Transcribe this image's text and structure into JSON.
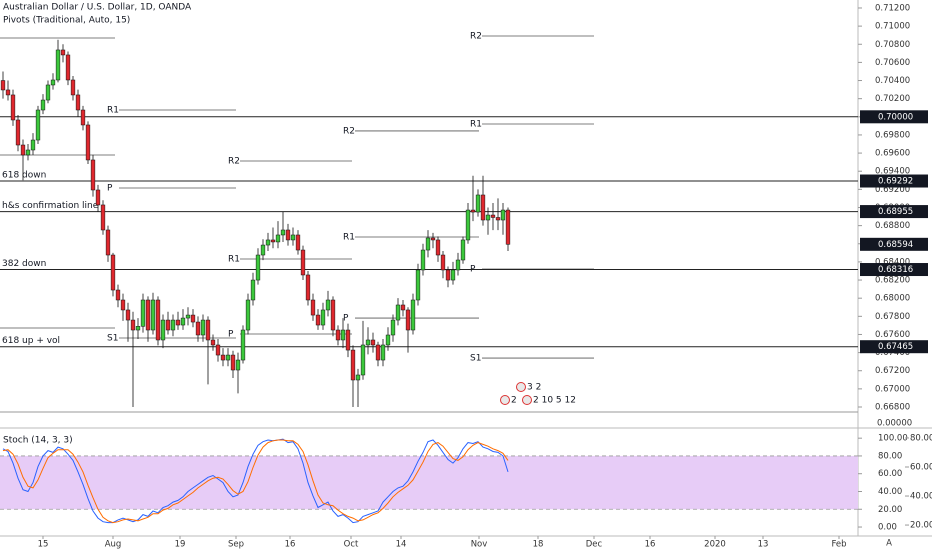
{
  "header": {
    "symbol": "Australian Dollar / U.S. Dollar, 1D, OANDA",
    "indicator": "Pivots (Traditional, Auto, 15)",
    "scale_button": "A"
  },
  "chart_data": [
    {
      "type": "candlestick",
      "up_color": "#3cc83c",
      "down_color": "#e0282e",
      "open": [
        0.704,
        0.70296,
        0.70241,
        0.69965,
        0.69689,
        0.69579,
        0.69634,
        0.69744,
        0.70075,
        0.70185,
        0.70351,
        0.70406,
        0.70737,
        0.70682,
        0.70406,
        0.70241,
        0.70075,
        0.6991,
        0.69524,
        0.69193,
        0.69028,
        0.68752,
        0.68476,
        0.6809,
        0.6798,
        0.6787,
        0.67759,
        0.67649,
        0.6769,
        0.6798,
        0.67649,
        0.6798,
        0.67539,
        0.67759,
        0.67649,
        0.67759,
        0.67704,
        0.67781,
        0.67814,
        0.67737,
        0.67594,
        0.67759,
        0.67539,
        0.67484,
        0.67373,
        0.67318,
        0.67373,
        0.67208,
        0.67318,
        0.67649,
        0.6798,
        0.682,
        0.68476,
        0.68586,
        0.68642,
        0.6862,
        0.68697,
        0.68752,
        0.68642,
        0.68697,
        0.68531,
        0.68256,
        0.6798,
        0.67814,
        0.67704,
        0.6787,
        0.6798,
        0.67649,
        0.67539,
        0.67649,
        0.67428,
        0.67098,
        0.67153,
        0.67484,
        0.67539,
        0.67484,
        0.67318,
        0.67484,
        0.67594,
        0.67759,
        0.67925,
        0.6787,
        0.67649,
        0.6798,
        0.68311,
        0.68531,
        0.68664,
        0.68642,
        0.68476,
        0.68311,
        0.682,
        0.68311,
        0.68421,
        0.68642,
        0.68972,
        0.6895,
        0.69138,
        0.68862,
        0.68917,
        0.6889,
        0.68862,
        0.68972
      ],
      "high": [
        0.705,
        0.704,
        0.703,
        0.7002,
        0.6975,
        0.697,
        0.6982,
        0.7012,
        0.7025,
        0.704,
        0.7048,
        0.7085,
        0.708,
        0.7072,
        0.7045,
        0.703,
        0.7012,
        0.6995,
        0.6958,
        0.6925,
        0.6908,
        0.688,
        0.685,
        0.6815,
        0.6805,
        0.6795,
        0.6785,
        0.6778,
        0.6805,
        0.6802,
        0.6806,
        0.6802,
        0.6782,
        0.6785,
        0.6782,
        0.6785,
        0.6788,
        0.679,
        0.6788,
        0.678,
        0.6782,
        0.678,
        0.676,
        0.6755,
        0.6745,
        0.6745,
        0.6742,
        0.674,
        0.677,
        0.6805,
        0.6828,
        0.6855,
        0.6865,
        0.6872,
        0.6878,
        0.6885,
        0.6895,
        0.6882,
        0.6878,
        0.6875,
        0.6858,
        0.683,
        0.6805,
        0.6788,
        0.6795,
        0.6808,
        0.6802,
        0.677,
        0.6778,
        0.6772,
        0.6748,
        0.6722,
        0.6775,
        0.6768,
        0.6762,
        0.6752,
        0.6755,
        0.6768,
        0.6782,
        0.68,
        0.6798,
        0.679,
        0.6805,
        0.6838,
        0.686,
        0.6875,
        0.6872,
        0.6868,
        0.6852,
        0.6835,
        0.684,
        0.685,
        0.6868,
        0.6905,
        0.6935,
        0.692,
        0.6935,
        0.69,
        0.6905,
        0.691,
        0.6905,
        0.69
      ],
      "low": [
        0.702,
        0.7018,
        0.699,
        0.6962,
        0.693,
        0.6952,
        0.6958,
        0.697,
        0.7003,
        0.7015,
        0.703,
        0.7038,
        0.706,
        0.7035,
        0.7018,
        0.7,
        0.6985,
        0.6948,
        0.6912,
        0.6895,
        0.687,
        0.684,
        0.6802,
        0.679,
        0.6775,
        0.6752,
        0.668,
        0.6755,
        0.6762,
        0.6752,
        0.676,
        0.6748,
        0.6745,
        0.676,
        0.6758,
        0.6765,
        0.6765,
        0.677,
        0.6768,
        0.6752,
        0.6752,
        0.6705,
        0.6742,
        0.673,
        0.6725,
        0.6725,
        0.6712,
        0.6695,
        0.6728,
        0.676,
        0.6792,
        0.6815,
        0.6842,
        0.6852,
        0.6855,
        0.6855,
        0.6862,
        0.6858,
        0.6858,
        0.6848,
        0.682,
        0.6792,
        0.6775,
        0.6765,
        0.6765,
        0.678,
        0.6758,
        0.6748,
        0.6745,
        0.6735,
        0.668,
        0.668,
        0.671,
        0.6738,
        0.674,
        0.6725,
        0.6725,
        0.6742,
        0.6752,
        0.677,
        0.678,
        0.674,
        0.676,
        0.6792,
        0.6825,
        0.6845,
        0.6855,
        0.684,
        0.6822,
        0.6812,
        0.6815,
        0.6825,
        0.6838,
        0.686,
        0.6885,
        0.689,
        0.688,
        0.687,
        0.6875,
        0.6875,
        0.687,
        0.6852
      ],
      "close": [
        0.70296,
        0.70241,
        0.69965,
        0.69689,
        0.69579,
        0.69634,
        0.69744,
        0.70075,
        0.70185,
        0.70351,
        0.70406,
        0.70737,
        0.70682,
        0.70406,
        0.70241,
        0.70075,
        0.6991,
        0.69524,
        0.69193,
        0.69028,
        0.68752,
        0.68476,
        0.6809,
        0.6798,
        0.6787,
        0.67759,
        0.67649,
        0.6769,
        0.6798,
        0.67649,
        0.6798,
        0.67539,
        0.67759,
        0.67649,
        0.67759,
        0.67704,
        0.67781,
        0.67814,
        0.67737,
        0.67594,
        0.67759,
        0.67539,
        0.67484,
        0.67373,
        0.67318,
        0.67373,
        0.67208,
        0.67318,
        0.67649,
        0.6798,
        0.682,
        0.68476,
        0.68586,
        0.68642,
        0.6862,
        0.68697,
        0.68752,
        0.68642,
        0.68697,
        0.68531,
        0.68256,
        0.6798,
        0.67814,
        0.67704,
        0.6787,
        0.6798,
        0.67649,
        0.67539,
        0.67649,
        0.67428,
        0.67098,
        0.67153,
        0.67484,
        0.67539,
        0.67484,
        0.67318,
        0.67484,
        0.67594,
        0.67759,
        0.67925,
        0.6787,
        0.67649,
        0.6798,
        0.68311,
        0.68531,
        0.68664,
        0.68642,
        0.68476,
        0.68311,
        0.682,
        0.68311,
        0.68421,
        0.68642,
        0.68972,
        0.6895,
        0.69138,
        0.68862,
        0.68917,
        0.6889,
        0.68862,
        0.68972,
        0.68594
      ],
      "xlim": [
        -0.6,
        171
      ],
      "ylim": [
        0.66745,
        0.71288
      ],
      "xticks": [
        {
          "value": 8,
          "label": "15"
        },
        {
          "value": 22,
          "label": "Aug"
        },
        {
          "value": 35.4,
          "label": "19"
        },
        {
          "value": 46.6,
          "label": "Sep"
        },
        {
          "value": 57.4,
          "label": "16"
        },
        {
          "value": 69.6,
          "label": "Oct"
        },
        {
          "value": 79.6,
          "label": "14"
        },
        {
          "value": 95.2,
          "label": "Nov"
        },
        {
          "value": 107,
          "label": "18"
        },
        {
          "value": 118.2,
          "label": "Dec"
        },
        {
          "value": 129.4,
          "label": "16"
        },
        {
          "value": 142.4,
          "label": "2020"
        },
        {
          "value": 152,
          "label": "13"
        },
        {
          "value": 167.2,
          "label": "Feb"
        }
      ],
      "yticks": [
        {
          "value": 0.668,
          "label": "0.66800"
        },
        {
          "value": 0.67,
          "label": "0.67000"
        },
        {
          "value": 0.672,
          "label": "0.67200"
        },
        {
          "value": 0.674,
          "label": "0.67400"
        },
        {
          "value": 0.676,
          "label": "0.67600"
        },
        {
          "value": 0.678,
          "label": "0.67800"
        },
        {
          "value": 0.68,
          "label": "0.68000"
        },
        {
          "value": 0.682,
          "label": "0.68200"
        },
        {
          "value": 0.684,
          "label": "0.68400"
        },
        {
          "value": 0.686,
          "label": "0.68600"
        },
        {
          "value": 0.688,
          "label": "0.68800"
        },
        {
          "value": 0.69,
          "label": "0.69000"
        },
        {
          "value": 0.692,
          "label": "0.69200"
        },
        {
          "value": 0.694,
          "label": "0.69400"
        },
        {
          "value": 0.696,
          "label": "0.69600"
        },
        {
          "value": 0.698,
          "label": "0.69800"
        },
        {
          "value": 0.7,
          "label": "0.70000"
        },
        {
          "value": 0.702,
          "label": "0.70200"
        },
        {
          "value": 0.704,
          "label": "0.70400"
        },
        {
          "value": 0.706,
          "label": "0.70600"
        },
        {
          "value": 0.708,
          "label": "0.70800"
        },
        {
          "value": 0.71,
          "label": "0.71000"
        },
        {
          "value": 0.712,
          "label": "0.71200"
        }
      ],
      "hlines": [
        {
          "value": 0.7,
          "value_label": "0.70000"
        },
        {
          "value": 0.69292,
          "value_label": "0.69292",
          "label": "618 down"
        },
        {
          "value": 0.68955,
          "value_label": "0.68955",
          "label": "h&s confirmation line"
        },
        {
          "value": 0.68316,
          "value_label": "0.68316",
          "label": "382 down"
        },
        {
          "value": 0.67465,
          "value_label": "0.67465",
          "label": "618 up + vol"
        }
      ],
      "last_price": {
        "value": 0.68594,
        "label": "0.68594"
      },
      "volume_zero_label": "0.00000",
      "pivots": [
        {
          "start": -1,
          "end": 22.4,
          "levels": [
            {
              "value": 0.70869
            },
            {
              "value": 0.69579
            },
            {
              "value": 0.67671
            }
          ]
        },
        {
          "start": 20.8,
          "end": 46.6,
          "levels": [
            {
              "value": 0.70075,
              "label": "R1"
            },
            {
              "value": 0.69215,
              "label": "P"
            },
            {
              "value": 0.67561,
              "label": "S1"
            }
          ]
        },
        {
          "start": 45,
          "end": 69.8,
          "levels": [
            {
              "value": 0.69513,
              "label": "R2"
            },
            {
              "value": 0.68432,
              "label": "R1"
            },
            {
              "value": 0.67605,
              "label": "P"
            }
          ]
        },
        {
          "start": 68,
          "end": 95.2,
          "levels": [
            {
              "value": 0.69844,
              "label": "R2"
            },
            {
              "value": 0.68675,
              "label": "R1"
            },
            {
              "value": 0.67781,
              "label": "P"
            }
          ]
        },
        {
          "start": 93.4,
          "end": 118.2,
          "levels": [
            {
              "value": 0.70891,
              "label": "R2"
            },
            {
              "value": 0.69921,
              "label": "R1"
            },
            {
              "value": 0.68322,
              "label": "P"
            },
            {
              "value": 0.6734,
              "label": "S1"
            }
          ]
        }
      ],
      "events": [
        "3 2",
        "2",
        "2 10 5 12"
      ]
    },
    {
      "type": "line",
      "title": "Stoch (14, 3, 3)",
      "series": [
        {
          "color": "#2962ff",
          "values": [
            88,
            85,
            72,
            55,
            42,
            40,
            50,
            68,
            80,
            86,
            84,
            90,
            88,
            82,
            75,
            62,
            48,
            32,
            18,
            10,
            6,
            5,
            5,
            8,
            10,
            8,
            6,
            8,
            14,
            12,
            18,
            16,
            22,
            24,
            28,
            30,
            34,
            40,
            44,
            48,
            52,
            56,
            58,
            54,
            50,
            40,
            34,
            36,
            50,
            68,
            82,
            92,
            96,
            98,
            97,
            98,
            99,
            95,
            96,
            88,
            72,
            50,
            35,
            22,
            25,
            28,
            18,
            12,
            14,
            10,
            5,
            6,
            12,
            14,
            16,
            18,
            28,
            34,
            40,
            44,
            46,
            52,
            62,
            74,
            84,
            96,
            98,
            92,
            84,
            76,
            72,
            78,
            88,
            95,
            94,
            96,
            90,
            88,
            85,
            84,
            80,
            62
          ]
        },
        {
          "color": "#ff6d00",
          "values": [
            86,
            87,
            82,
            71,
            56,
            46,
            44,
            53,
            66,
            78,
            83,
            87,
            87,
            87,
            82,
            73,
            62,
            47,
            33,
            20,
            11,
            7,
            5,
            6,
            8,
            9,
            8,
            7,
            9,
            11,
            15,
            15,
            19,
            21,
            25,
            27,
            31,
            35,
            39,
            44,
            48,
            52,
            55,
            56,
            54,
            48,
            41,
            37,
            40,
            51,
            67,
            81,
            90,
            95,
            97,
            98,
            98,
            97,
            97,
            93,
            85,
            70,
            52,
            36,
            27,
            25,
            24,
            19,
            15,
            12,
            10,
            7,
            8,
            11,
            14,
            16,
            21,
            27,
            34,
            39,
            43,
            47,
            53,
            63,
            73,
            85,
            93,
            95,
            91,
            84,
            77,
            75,
            79,
            87,
            92,
            95,
            93,
            91,
            88,
            86,
            83,
            75
          ]
        }
      ],
      "band": [
        20,
        80
      ],
      "band_color": "#e7ccf7",
      "ylim": [
        -14.6,
        109.2
      ],
      "yticks": [
        {
          "value": 100,
          "label": "100.00"
        },
        {
          "value": 80,
          "label": "80.00"
        },
        {
          "value": 60,
          "label": "60.00"
        },
        {
          "value": 40,
          "label": "40.00"
        },
        {
          "value": 20,
          "label": "20.00"
        },
        {
          "value": 0,
          "label": "0.00"
        }
      ],
      "y2lim": [
        9.7,
        85.5
      ],
      "y2ticks": [
        {
          "value": 80,
          "label": "80.00"
        },
        {
          "value": 60,
          "label": "60.00"
        },
        {
          "value": 40,
          "label": "40.00"
        },
        {
          "value": 20,
          "label": "20.00"
        }
      ]
    }
  ]
}
